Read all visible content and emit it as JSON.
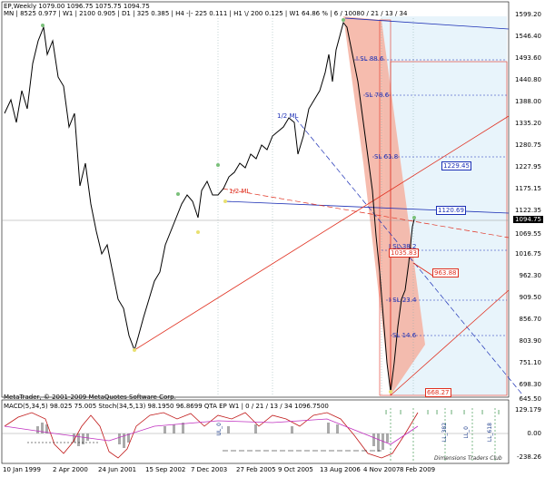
{
  "header": {
    "line1": "EP,Weekly  1079.00 1096.75 1075.75 1094.75",
    "line2": "MN  | 8525   0.977  | W1  | 2100   0.905  | D1  | 325   0.385  | H4  -|- 225   0.111  | H1 \\/ 200   0.125  | W1   64.86 % | 6 / 10080 / 21 / 13 / 34"
  },
  "price_axis": [
    "1599.20",
    "1546.40",
    "1493.60",
    "1440.80",
    "1388.00",
    "1335.20",
    "1280.75",
    "1227.95",
    "1175.15",
    "1122.35",
    "1069.55",
    "1016.75",
    "962.30",
    "909.50",
    "856.70",
    "803.90",
    "751.10",
    "698.30",
    "645.50"
  ],
  "current_price": "1094.75",
  "time_axis": [
    "10 Jan 1999",
    "2 Apr 2000",
    "24 Jun 2001",
    "15 Sep 2002",
    "7 Dec 2003",
    "27 Feb 2005",
    "9 Oct 2005",
    "13 Aug 2006",
    "4 Nov 2007",
    "8 Feb 2009"
  ],
  "annotations": {
    "half_ml_blue": "1/2 ML",
    "half_ml_red": "1/2 ML",
    "sl_884": "I SL 88.6",
    "sl_786": "SL 78.6",
    "sl_618": "SL 61.8",
    "sl_382": "I SL 38.2",
    "sl_234": "I SL 23.4",
    "sl_146": "SL 14.6",
    "level_1229": "1229.45",
    "level_1120": "1120.69",
    "level_1035": "1035.83",
    "level_963": "963.88",
    "level_668": "668.27"
  },
  "indicator": {
    "header": "MACD(5,34,5) 98.025 75.005   Stoch(34,5,13) 98.1950 96.8699   QTA EP W1 | 0 / 21 / 13 / 34  1096.7500",
    "axis": [
      "129.179",
      "0.00",
      "-238.26"
    ],
    "vertical_labels": [
      "UL_0",
      "LL_382",
      "LL_0",
      "LL_618"
    ],
    "watermark": "Dimensions Traders Club"
  },
  "copyright": "MetaTrader, © 2001-2009 MetaQuotes Software Corp.",
  "colors": {
    "price": "#000000",
    "median_blue": "#1b2fb5",
    "median_red": "#e03020",
    "fork_fill": "#f4b0a0",
    "zone_fill": "#e8f4fb",
    "ok_green": "#2a8a3a"
  }
}
